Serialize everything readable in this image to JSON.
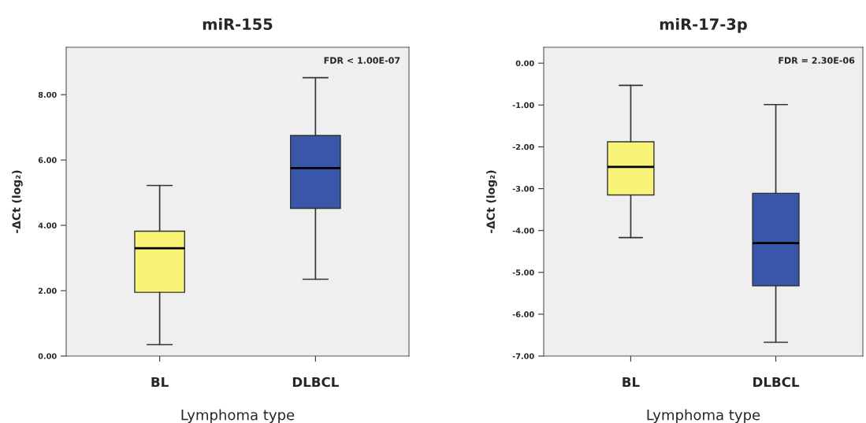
{
  "chart_data": [
    {
      "type": "box",
      "title": "miR-155",
      "xlabel": "Lymphoma type",
      "ylabel": "-ΔCt (log₂)",
      "categories": [
        "BL",
        "DLBCL"
      ],
      "colors": [
        "#f8f477",
        "#3a56a8"
      ],
      "boxes": [
        {
          "low": 0.35,
          "q1": 1.95,
          "median": 3.3,
          "q3": 3.82,
          "high": 5.22
        },
        {
          "low": 2.35,
          "q1": 4.52,
          "median": 5.75,
          "q3": 6.75,
          "high": 8.52
        }
      ],
      "ylim": [
        0,
        9.45
      ],
      "yticks": [
        {
          "value": 0,
          "label": "0.00"
        },
        {
          "value": 2,
          "label": "2.00"
        },
        {
          "value": 4,
          "label": "4.00"
        },
        {
          "value": 6,
          "label": "6.00"
        },
        {
          "value": 8,
          "label": "8.00"
        }
      ],
      "annotations": [
        "FDR < 1.00E-07"
      ],
      "grid": false
    },
    {
      "type": "box",
      "title": "miR-17-3p",
      "xlabel": "Lymphoma type",
      "ylabel": "-ΔCt (log₂)",
      "categories": [
        "BL",
        "DLBCL"
      ],
      "colors": [
        "#f8f477",
        "#3a56a8"
      ],
      "boxes": [
        {
          "low": -4.17,
          "q1": -3.15,
          "median": -2.48,
          "q3": -1.88,
          "high": -0.53
        },
        {
          "low": -6.67,
          "q1": -5.32,
          "median": -4.3,
          "q3": -3.11,
          "high": -0.99
        }
      ],
      "ylim": [
        -7,
        0.38
      ],
      "yticks": [
        {
          "value": -7,
          "label": "-7.00"
        },
        {
          "value": -6,
          "label": "-6.00"
        },
        {
          "value": -5,
          "label": "-5.00"
        },
        {
          "value": -4,
          "label": "-4.00"
        },
        {
          "value": -3,
          "label": "-3.00"
        },
        {
          "value": -2,
          "label": "-2.00"
        },
        {
          "value": -1,
          "label": "-1.00"
        },
        {
          "value": 0,
          "label": "0.00"
        }
      ],
      "annotations": [
        "FDR = 2.30E-06"
      ],
      "grid": false
    }
  ]
}
